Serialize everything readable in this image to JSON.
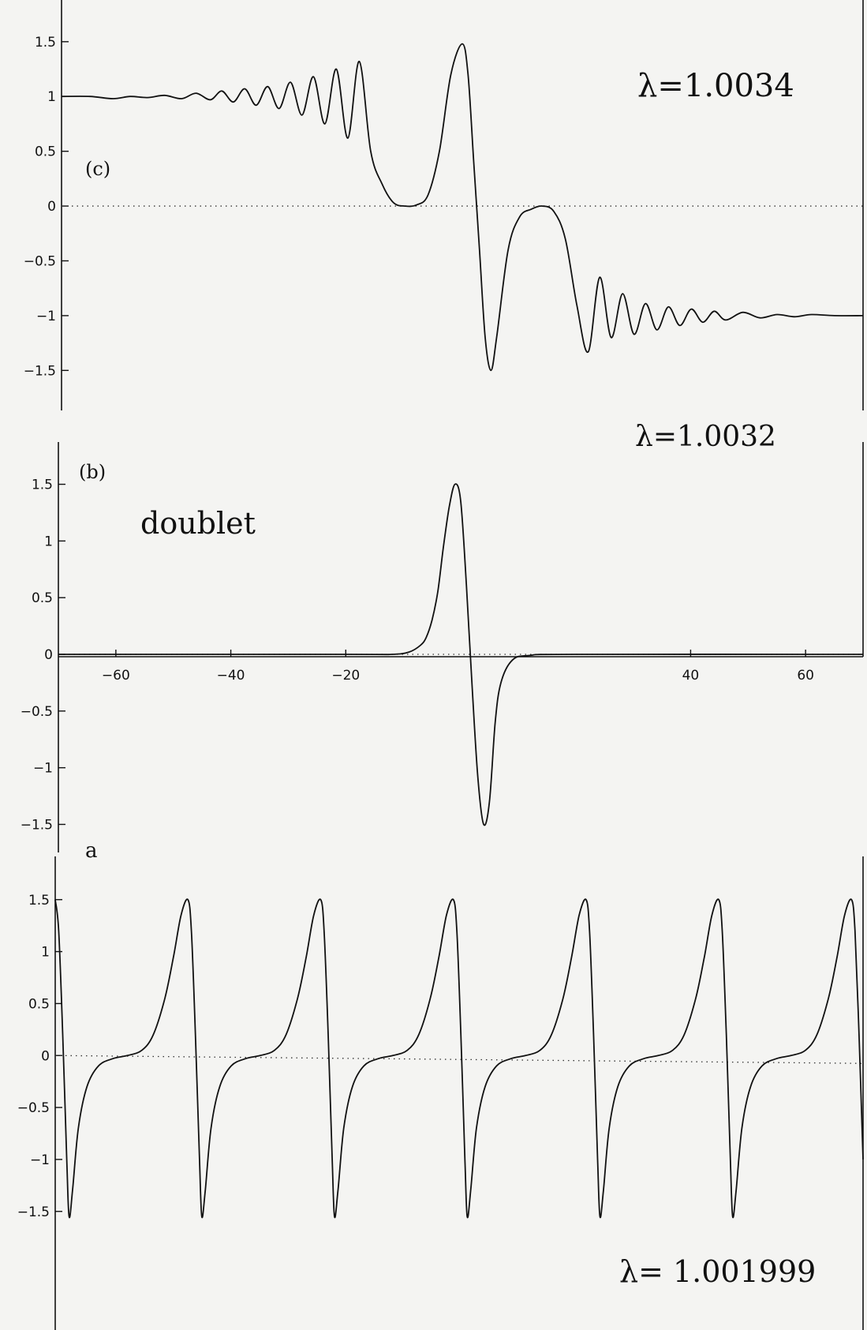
{
  "chart_data": [
    {
      "type": "line",
      "panel": "c",
      "panel_label": "(c)",
      "annotation": "λ=1.0034",
      "title": "",
      "xlim": [
        -70,
        70
      ],
      "ylim": [
        -1.75,
        1.65
      ],
      "yticks": [
        "1.5",
        "1",
        "0.5",
        "0",
        "−0.5",
        "−1",
        "−1.5"
      ],
      "ytick_values": [
        1.5,
        1,
        0.5,
        0,
        -0.5,
        -1,
        -1.5
      ],
      "grid": false,
      "series": [
        {
          "x": [
            -70,
            -65,
            -61,
            -58,
            -55,
            -52,
            -49,
            -46.5,
            -44,
            -42,
            -40,
            -38,
            -36,
            -34,
            -32,
            -30,
            -28,
            -26,
            -24,
            -22,
            -20,
            -18,
            -16,
            -14,
            -12,
            -10,
            -8,
            -6,
            -4,
            -2,
            0,
            1,
            2,
            3,
            4,
            5,
            6,
            8,
            10,
            12,
            14,
            16,
            18,
            20,
            22,
            24,
            26,
            28,
            30,
            32,
            34,
            36,
            38,
            40,
            42,
            44,
            46,
            49,
            52,
            55,
            58,
            61,
            65,
            70
          ],
          "y": [
            1.0,
            1.0,
            0.98,
            1.0,
            0.99,
            1.01,
            0.98,
            1.03,
            0.97,
            1.05,
            0.95,
            1.07,
            0.92,
            1.09,
            0.89,
            1.13,
            0.83,
            1.18,
            0.75,
            1.25,
            0.62,
            1.32,
            0.5,
            0.2,
            0.03,
            0.0,
            0.01,
            0.1,
            0.5,
            1.2,
            1.48,
            1.2,
            0.4,
            -0.4,
            -1.2,
            -1.5,
            -1.2,
            -0.4,
            -0.1,
            -0.03,
            0.0,
            -0.05,
            -0.3,
            -0.9,
            -1.33,
            -0.65,
            -1.2,
            -0.8,
            -1.17,
            -0.89,
            -1.13,
            -0.92,
            -1.09,
            -0.94,
            -1.06,
            -0.96,
            -1.04,
            -0.97,
            -1.02,
            -0.99,
            -1.01,
            -0.99,
            -1.0,
            -1.0
          ]
        }
      ]
    },
    {
      "type": "line",
      "panel": "b",
      "panel_label": "(b)",
      "annotation": "λ=1.0032",
      "note": "doublet",
      "title": "",
      "xlim": [
        -70,
        70
      ],
      "ylim": [
        -1.65,
        1.65
      ],
      "xticks": [
        "−60",
        "−40",
        "−20",
        "40",
        "60"
      ],
      "xtick_values": [
        -60,
        -40,
        -20,
        40,
        60
      ],
      "yticks": [
        "1.5",
        "1",
        "0.5",
        "0",
        "−0.5",
        "−1",
        "−1.5"
      ],
      "ytick_values": [
        1.5,
        1,
        0.5,
        0,
        -0.5,
        -1,
        -1.5
      ],
      "grid": false,
      "series": [
        {
          "x": [
            -70,
            -20,
            -12,
            -9,
            -7,
            -6,
            -5,
            -4,
            -3,
            -2,
            -1,
            0,
            1,
            2,
            3,
            4,
            5,
            6,
            7,
            9,
            12,
            20,
            70
          ],
          "y": [
            0.0,
            0.0,
            0.0,
            0.02,
            0.08,
            0.15,
            0.3,
            0.55,
            0.95,
            1.3,
            1.5,
            1.35,
            0.6,
            -0.3,
            -1.1,
            -1.5,
            -1.3,
            -0.6,
            -0.25,
            -0.05,
            -0.01,
            0.0,
            0.0
          ]
        }
      ]
    },
    {
      "type": "line",
      "panel": "a",
      "panel_label": "a",
      "annotation": "λ= 1.001999",
      "title": "",
      "xlim": [
        -70,
        70
      ],
      "ylim": [
        -1.95,
        1.65
      ],
      "yticks": [
        "1.5",
        "1",
        "0.5",
        "0",
        "−0.5",
        "−1",
        "−1.5"
      ],
      "ytick_values": [
        1.5,
        1,
        0.5,
        0,
        -0.5,
        -1,
        -1.5
      ],
      "grid": false,
      "period": 23,
      "x_first_peak": -70,
      "peak_value": 1.5,
      "trough_value": -1.55
    }
  ]
}
